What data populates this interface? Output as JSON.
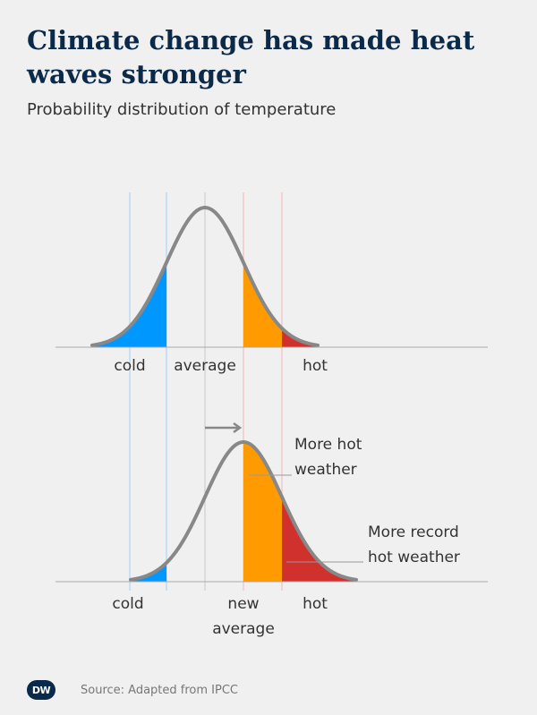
{
  "header": {
    "title": "Climate change has made heat waves stronger",
    "subtitle": "Probability distribution of temperature"
  },
  "diagram": {
    "top": {
      "labels": {
        "cold": "cold",
        "average": "average",
        "hot": "hot"
      }
    },
    "bottom": {
      "labels": {
        "cold": "cold",
        "new_average_1": "new",
        "new_average_2": "average",
        "hot": "hot"
      },
      "annotations": {
        "more_hot_1": "More hot",
        "more_hot_2": "weather",
        "record_1": "More record",
        "record_2": "hot weather"
      }
    },
    "colors": {
      "cold": "#0098ff",
      "hot": "#ff9b00",
      "record": "#d0312d",
      "curve": "#888888",
      "axis": "#aaaaaa"
    }
  },
  "footer": {
    "logo": "DW",
    "source": "Source: Adapted from IPCC"
  }
}
